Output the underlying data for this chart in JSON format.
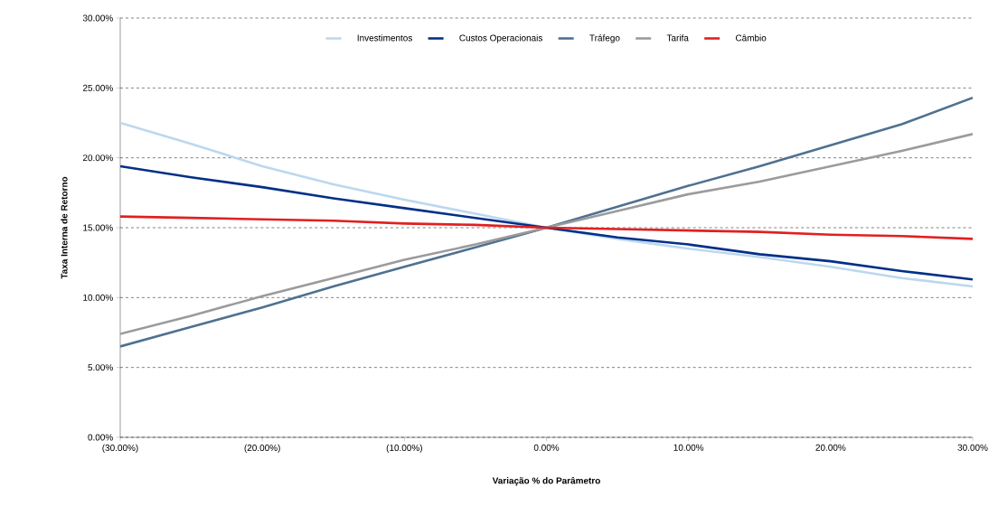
{
  "chart_data": {
    "type": "line",
    "xlabel": "Variação % do Parâmetro",
    "ylabel": "Taxa Interna de Retorno",
    "x": [
      -30,
      -25,
      -20,
      -15,
      -10,
      -5,
      0,
      5,
      10,
      15,
      20,
      25,
      30
    ],
    "xlim": [
      -30,
      30
    ],
    "ylim": [
      0,
      30
    ],
    "xticks": [
      {
        "value": -30,
        "label": "(30.00%)"
      },
      {
        "value": -20,
        "label": "(20.00%)"
      },
      {
        "value": -10,
        "label": "(10.00%)"
      },
      {
        "value": 0,
        "label": "0.00%"
      },
      {
        "value": 10,
        "label": "10.00%"
      },
      {
        "value": 20,
        "label": "20.00%"
      },
      {
        "value": 30,
        "label": "30.00%"
      }
    ],
    "yticks": [
      {
        "value": 0,
        "label": "0.00%"
      },
      {
        "value": 5,
        "label": "5.00%"
      },
      {
        "value": 10,
        "label": "10.00%"
      },
      {
        "value": 15,
        "label": "15.00%"
      },
      {
        "value": 20,
        "label": "20.00%"
      },
      {
        "value": 25,
        "label": "25.00%"
      },
      {
        "value": 30,
        "label": "30.00%"
      }
    ],
    "grid": "y",
    "legend": "top",
    "marker": "none",
    "line_style": "solid",
    "series": [
      {
        "name": "Investimentos",
        "color": "#bdd7ee",
        "values": [
          22.5,
          21.0,
          19.4,
          18.1,
          17.0,
          16.0,
          15.0,
          14.2,
          13.5,
          12.9,
          12.2,
          11.4,
          10.8
        ]
      },
      {
        "name": "Custos Operacionais",
        "color": "#003087",
        "values": [
          19.4,
          18.6,
          17.9,
          17.1,
          16.4,
          15.7,
          15.0,
          14.3,
          13.8,
          13.1,
          12.6,
          11.9,
          11.3
        ]
      },
      {
        "name": "Tráfego",
        "color": "#4f7190",
        "values": [
          6.5,
          7.9,
          9.3,
          10.8,
          12.2,
          13.6,
          15.0,
          16.5,
          18.0,
          19.4,
          20.9,
          22.4,
          24.3
        ]
      },
      {
        "name": "Tarifa",
        "color": "#9b9b9b",
        "values": [
          7.4,
          8.7,
          10.1,
          11.4,
          12.7,
          13.8,
          15.0,
          16.2,
          17.4,
          18.3,
          19.4,
          20.5,
          21.7
        ]
      },
      {
        "name": "Câmbio",
        "color": "#e02020",
        "values": [
          15.8,
          15.7,
          15.6,
          15.5,
          15.3,
          15.2,
          15.0,
          14.9,
          14.8,
          14.7,
          14.5,
          14.4,
          14.2
        ]
      }
    ]
  }
}
